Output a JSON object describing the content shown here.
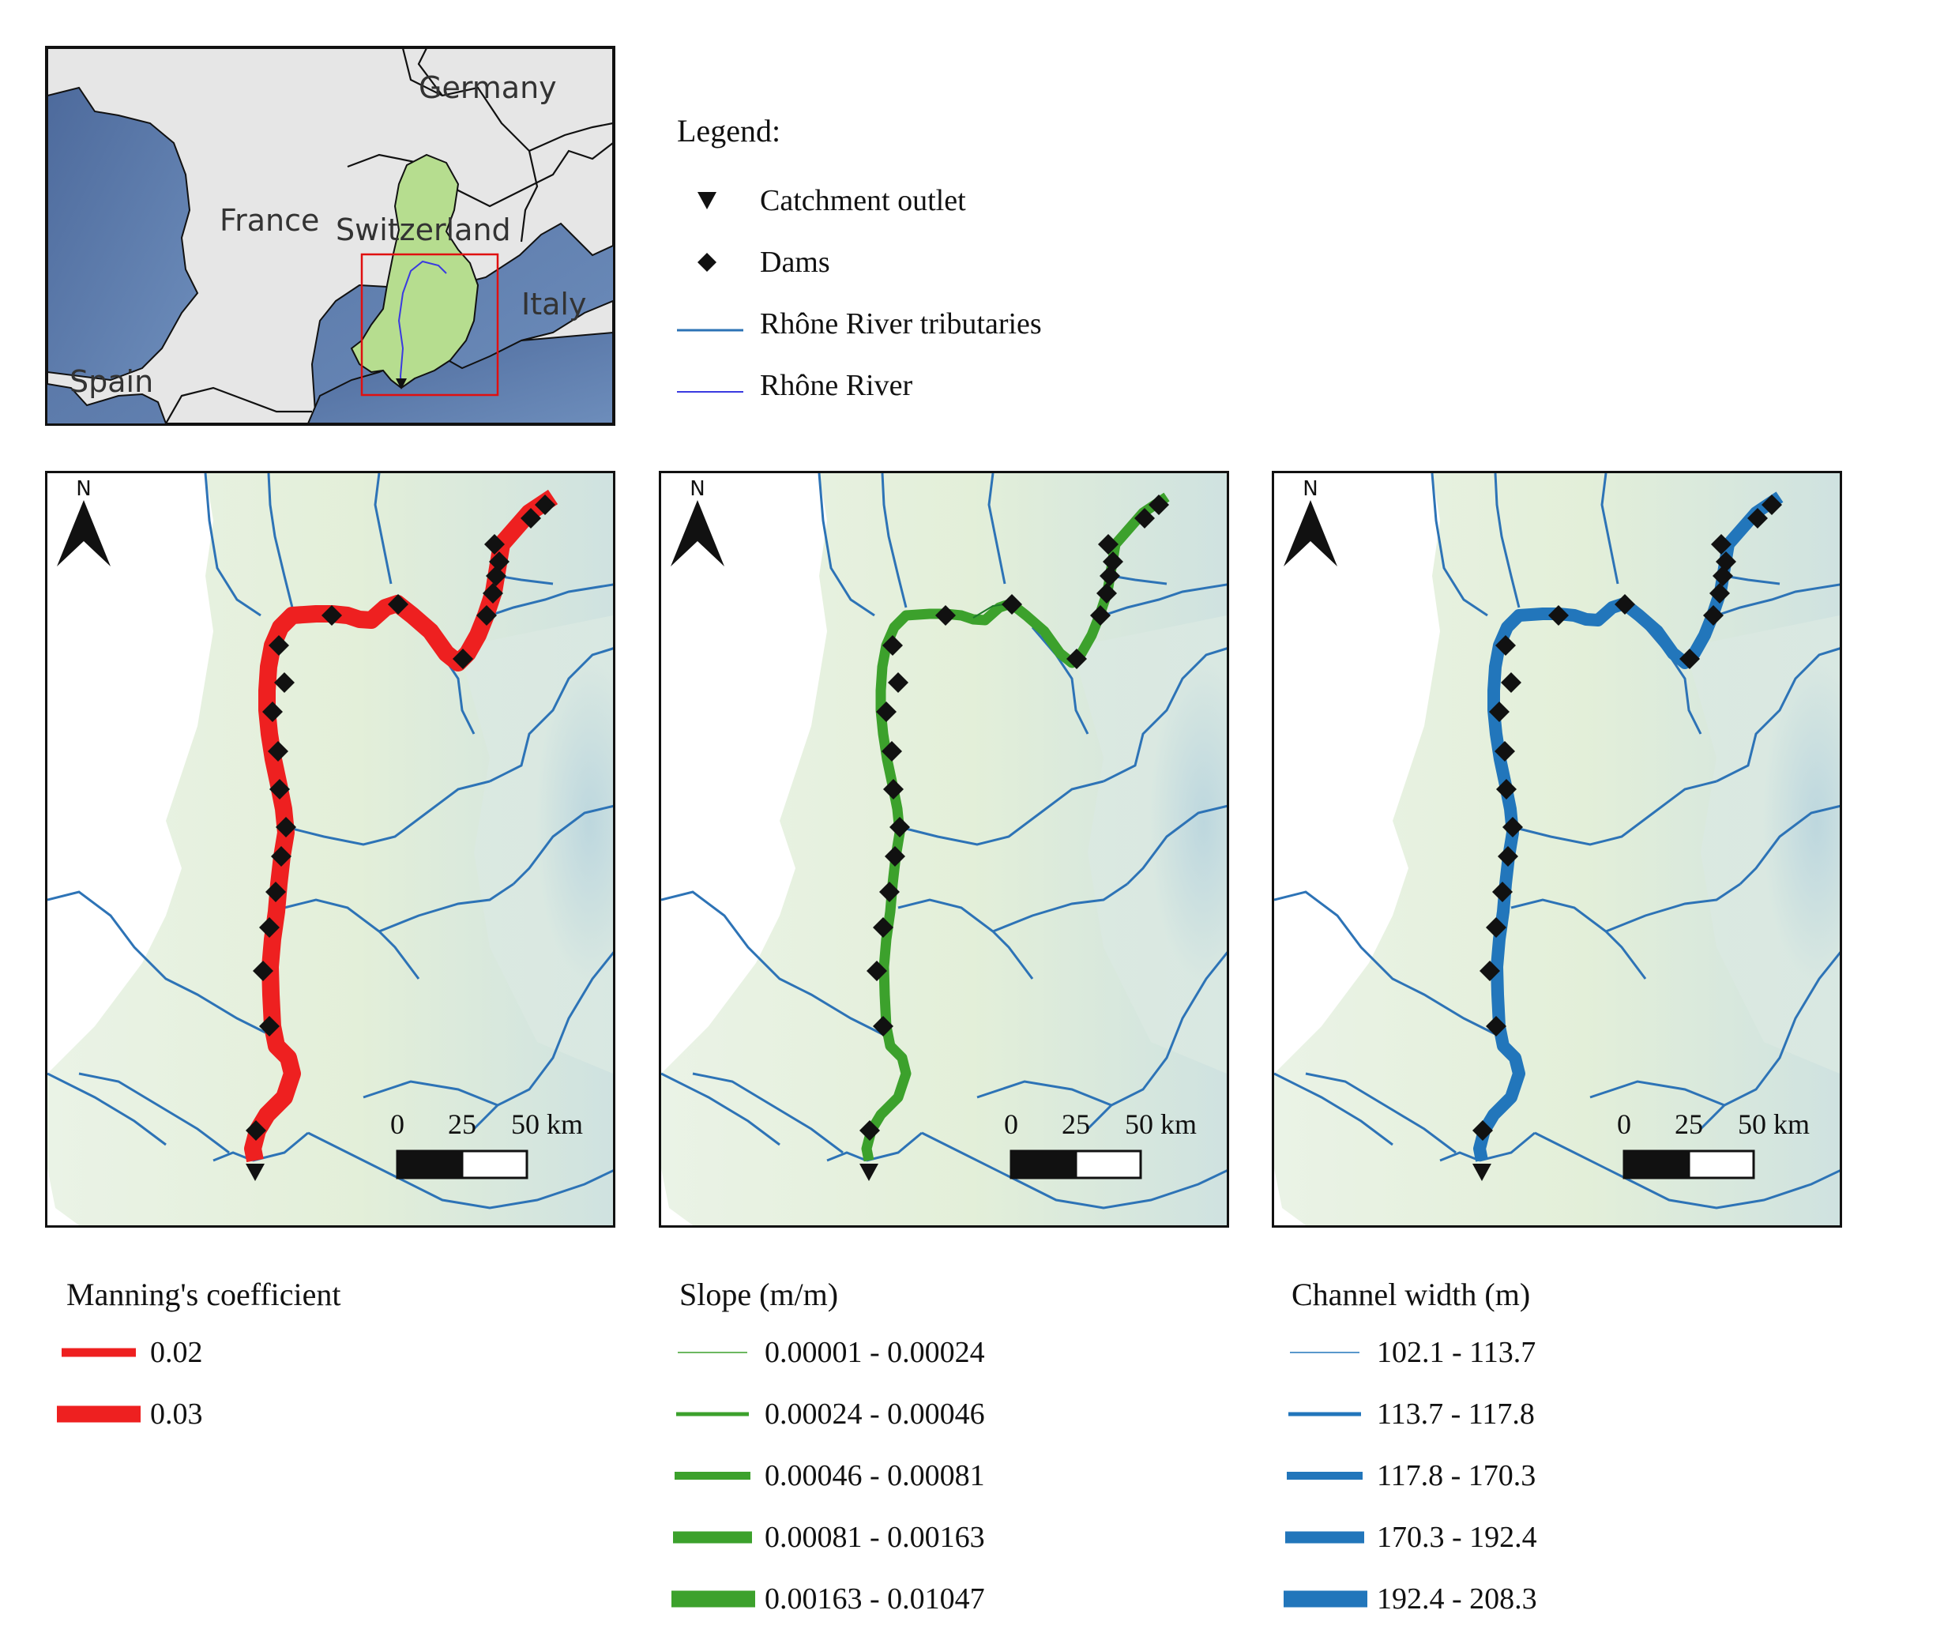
{
  "inset": {
    "country_labels": {
      "germany": "Germany",
      "france": "France",
      "switzerland": "Switzerland",
      "italy": "Italy",
      "spain": "Spain"
    },
    "colors": {
      "land": "#e6e6e6",
      "sea": "#5b7aa8",
      "catchment": "#b6dd8f",
      "box": "#e01010"
    }
  },
  "main_legend": {
    "title": "Legend:",
    "items": [
      {
        "label": "Catchment outlet",
        "symbol": "triangle-down-icon"
      },
      {
        "label": "Dams",
        "symbol": "diamond-icon"
      },
      {
        "label": "Rhône River tributaries",
        "symbol": "line",
        "color": "#2d73b6"
      },
      {
        "label": "Rhône River",
        "symbol": "line",
        "color": "#3a3ae0"
      }
    ]
  },
  "panels": [
    {
      "north": "N",
      "scale": {
        "ticks": [
          "0",
          "25",
          "50 km"
        ]
      },
      "river_color": "#ee2020",
      "legend": {
        "title": "Manning's coefficient",
        "classes": [
          {
            "label": "0.02"
          },
          {
            "label": "0.03"
          }
        ]
      }
    },
    {
      "north": "N",
      "scale": {
        "ticks": [
          "0",
          "25",
          "50 km"
        ]
      },
      "river_color": "#3ca12c",
      "legend": {
        "title": "Slope (m/m)",
        "classes": [
          {
            "label": "0.00001 - 0.00024"
          },
          {
            "label": "0.00024 - 0.00046"
          },
          {
            "label": "0.00046 - 0.00081"
          },
          {
            "label": "0.00081 - 0.00163"
          },
          {
            "label": "0.00163 - 0.01047"
          }
        ]
      }
    },
    {
      "north": "N",
      "scale": {
        "ticks": [
          "0",
          "25",
          "50 km"
        ]
      },
      "river_color": "#2276bb",
      "legend": {
        "title": "Channel width (m)",
        "classes": [
          {
            "label": "102.1 - 113.7"
          },
          {
            "label": "113.7 - 117.8"
          },
          {
            "label": "117.8 - 170.3"
          },
          {
            "label": "170.3 - 192.4"
          },
          {
            "label": "192.4 - 208.3"
          }
        ]
      }
    }
  ]
}
